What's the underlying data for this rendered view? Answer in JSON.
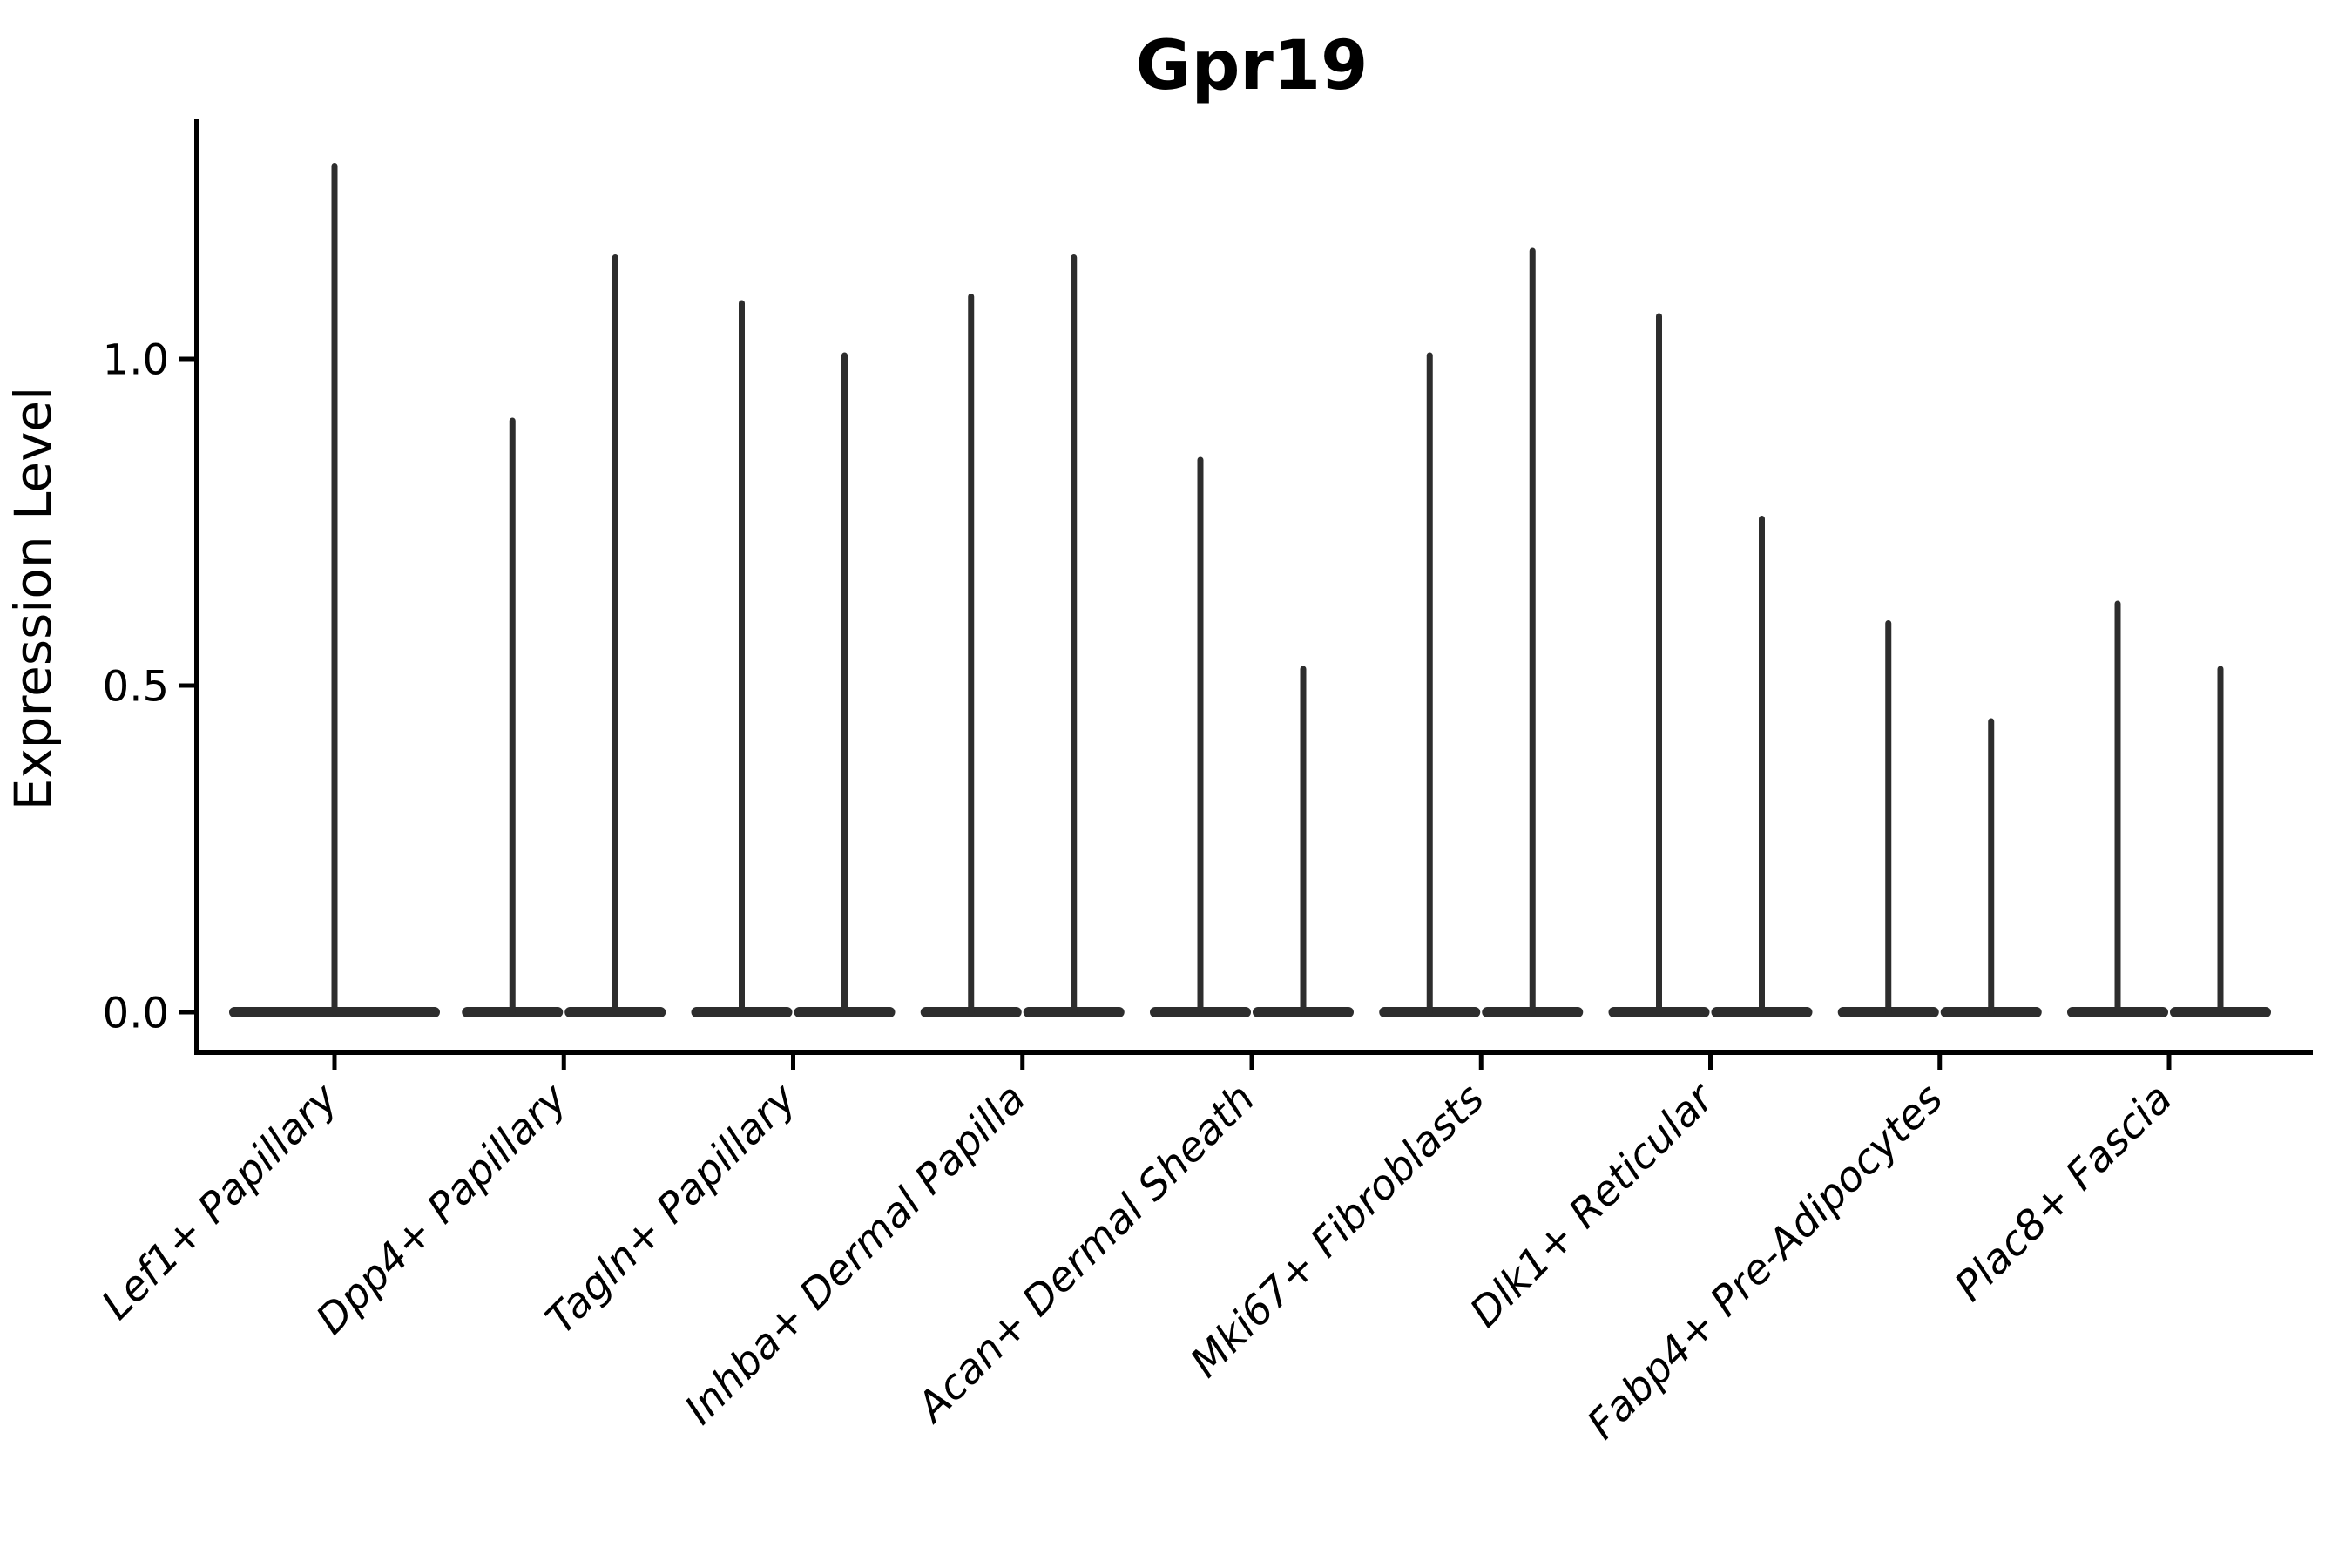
{
  "chart_data": {
    "type": "violin",
    "title": "Gpr19",
    "xlabel": "",
    "ylabel": "Expression Level",
    "ylim": [
      -0.06,
      1.36
    ],
    "grid": false,
    "legend": "none",
    "ytick_labels": [
      "0.0",
      "0.5",
      "1.0"
    ],
    "ytick_values": [
      0.0,
      0.5,
      1.0
    ],
    "violin_color": "#2d2d2d",
    "axis_color": "#000000",
    "categories": [
      "Lef1+ Papillary",
      "Dpp4+ Papillary",
      "Tagln+ Papillary",
      "Inhba+ Dermal Papilla",
      "Acan+ Dermal Sheath",
      "Mki67+ Fibroblasts",
      "Dlk1+ Reticular",
      "Fabp4+ Pre-Adipocytes",
      "Plac8+ Fascia"
    ],
    "series": [
      {
        "category": "Lef1+ Papillary",
        "violins": [
          {
            "span": "full",
            "min": 0.0,
            "max": 1.3
          }
        ]
      },
      {
        "category": "Dpp4+ Papillary",
        "violins": [
          {
            "span": "left",
            "min": 0.0,
            "max": 0.91
          },
          {
            "span": "right",
            "min": 0.0,
            "max": 1.16
          }
        ]
      },
      {
        "category": "Tagln+ Papillary",
        "violins": [
          {
            "span": "left",
            "min": 0.0,
            "max": 1.09
          },
          {
            "span": "right",
            "min": 0.0,
            "max": 1.01
          }
        ]
      },
      {
        "category": "Inhba+ Dermal Papilla",
        "violins": [
          {
            "span": "left",
            "min": 0.0,
            "max": 1.1
          },
          {
            "span": "right",
            "min": 0.0,
            "max": 1.16
          }
        ]
      },
      {
        "category": "Acan+ Dermal Sheath",
        "violins": [
          {
            "span": "left",
            "min": 0.0,
            "max": 0.85
          },
          {
            "span": "right",
            "min": 0.0,
            "max": 0.53
          }
        ]
      },
      {
        "category": "Mki67+ Fibroblasts",
        "violins": [
          {
            "span": "left",
            "min": 0.0,
            "max": 1.01
          },
          {
            "span": "right",
            "min": 0.0,
            "max": 1.17
          }
        ]
      },
      {
        "category": "Dlk1+ Reticular",
        "violins": [
          {
            "span": "left",
            "min": 0.0,
            "max": 1.07
          },
          {
            "span": "right",
            "min": 0.0,
            "max": 0.76
          }
        ]
      },
      {
        "category": "Fabp4+ Pre-Adipocytes",
        "violins": [
          {
            "span": "left",
            "min": 0.0,
            "max": 0.6
          },
          {
            "span": "right",
            "min": 0.0,
            "max": 0.45
          }
        ]
      },
      {
        "category": "Plac8+ Fascia",
        "violins": [
          {
            "span": "left",
            "min": 0.0,
            "max": 0.63
          },
          {
            "span": "right",
            "min": 0.0,
            "max": 0.53
          }
        ]
      }
    ]
  }
}
